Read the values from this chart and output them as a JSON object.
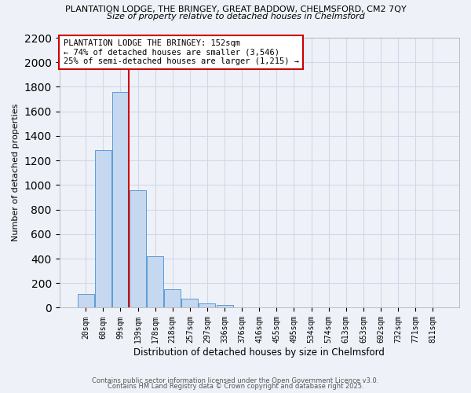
{
  "title_line1": "PLANTATION LODGE, THE BRINGEY, GREAT BADDOW, CHELMSFORD, CM2 7QY",
  "title_line2": "Size of property relative to detached houses in Chelmsford",
  "xlabel": "Distribution of detached houses by size in Chelmsford",
  "ylabel": "Number of detached properties",
  "categories": [
    "20sqm",
    "60sqm",
    "99sqm",
    "139sqm",
    "178sqm",
    "218sqm",
    "257sqm",
    "297sqm",
    "336sqm",
    "376sqm",
    "416sqm",
    "455sqm",
    "495sqm",
    "534sqm",
    "574sqm",
    "613sqm",
    "653sqm",
    "692sqm",
    "732sqm",
    "771sqm",
    "811sqm"
  ],
  "values": [
    110,
    1285,
    1760,
    960,
    420,
    150,
    75,
    38,
    20,
    0,
    0,
    0,
    0,
    0,
    0,
    0,
    0,
    0,
    0,
    0,
    0
  ],
  "bar_color": "#c5d8f0",
  "bar_edge_color": "#5b9bd5",
  "vline_x_index": 2.5,
  "vline_color": "#cc0000",
  "annotation_text": "PLANTATION LODGE THE BRINGEY: 152sqm\n← 74% of detached houses are smaller (3,546)\n25% of semi-detached houses are larger (1,215) →",
  "annotation_box_color": "#ffffff",
  "annotation_box_edge_color": "#cc0000",
  "ylim_max": 2200,
  "yticks": [
    0,
    200,
    400,
    600,
    800,
    1000,
    1200,
    1400,
    1600,
    1800,
    2000,
    2200
  ],
  "grid_color": "#d0d8e8",
  "background_color": "#eef2f8",
  "footer_line1": "Contains HM Land Registry data © Crown copyright and database right 2025.",
  "footer_line2": "Contains public sector information licensed under the Open Government Licence v3.0."
}
